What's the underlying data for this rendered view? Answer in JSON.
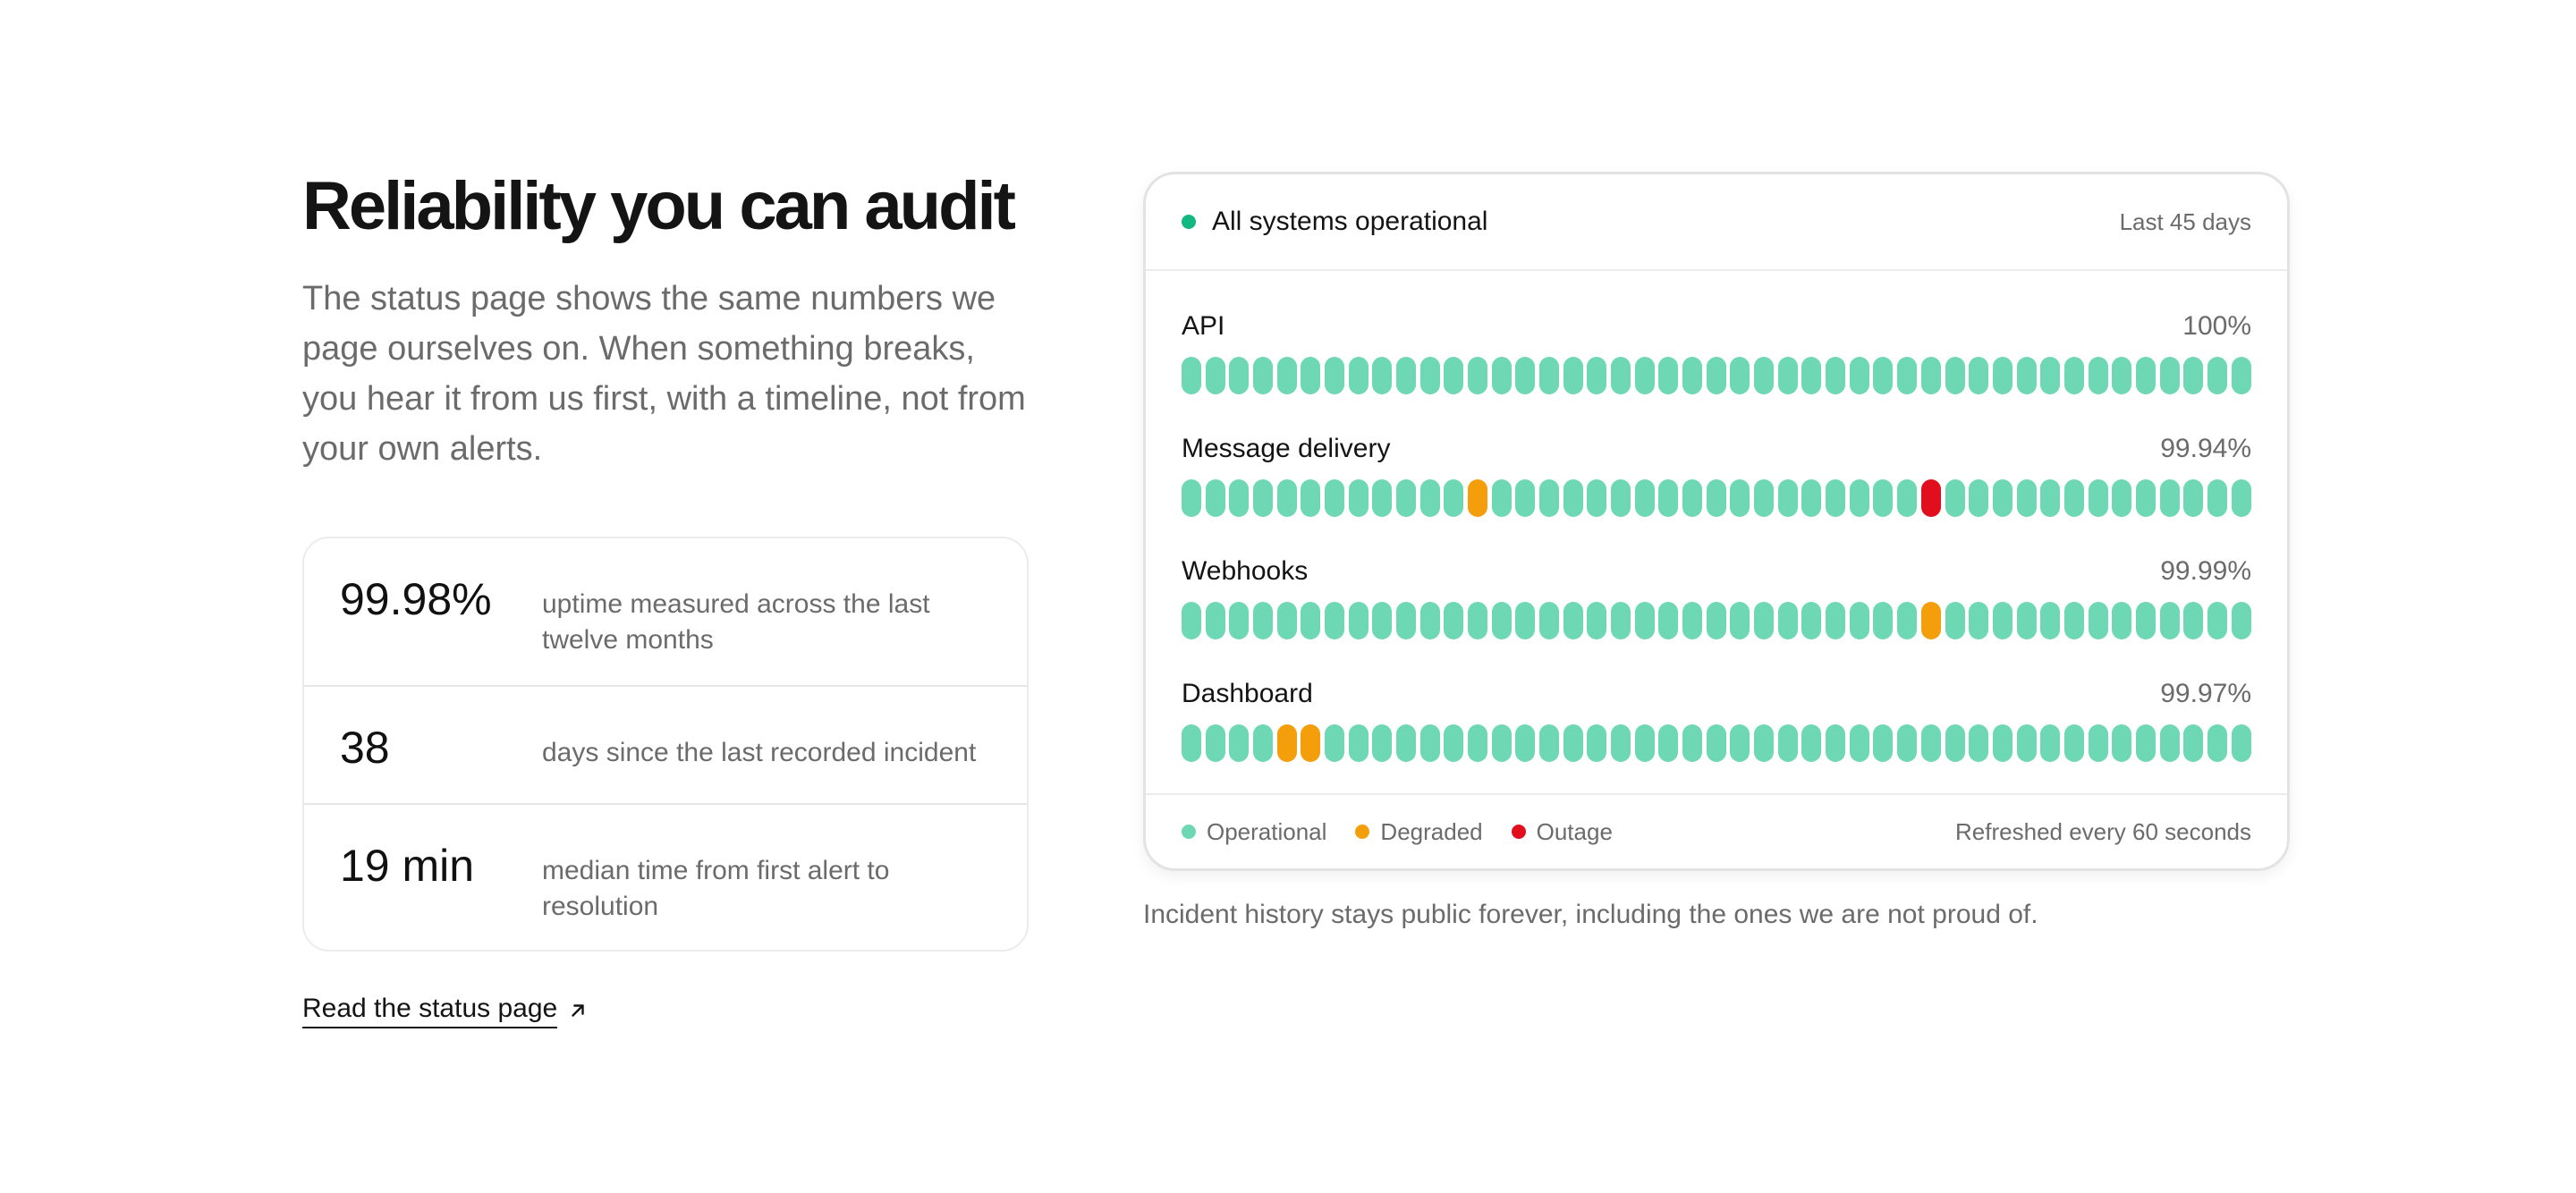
{
  "headline": "Reliability you can audit",
  "intro": "The status page shows the same numbers we page ourselves on. When something breaks, you hear it from us first, with a timeline, not from your own alerts.",
  "stats": [
    {
      "value": "99.98%",
      "desc": "uptime measured across the last twelve months"
    },
    {
      "value": "38",
      "desc": "days since the last recorded incident"
    },
    {
      "value": "19 min",
      "desc": "median time from first alert to resolution"
    }
  ],
  "link": {
    "label": "Read the status page",
    "icon": "arrow-up-right-icon"
  },
  "status_card": {
    "title": "All systems operational",
    "range": "Last 45 days",
    "services": [
      {
        "name": "API",
        "uptime": "100%",
        "degraded_days": [],
        "outage_days": []
      },
      {
        "name": "Message delivery",
        "uptime": "99.94%",
        "degraded_days": [
          12
        ],
        "outage_days": [
          31
        ]
      },
      {
        "name": "Webhooks",
        "uptime": "99.99%",
        "degraded_days": [
          31
        ],
        "outage_days": []
      },
      {
        "name": "Dashboard",
        "uptime": "99.97%",
        "degraded_days": [
          4,
          5
        ],
        "outage_days": []
      }
    ],
    "day_count": 45,
    "legend": [
      {
        "label": "Operational",
        "color": "#6ed8b5"
      },
      {
        "label": "Degraded",
        "color": "#f59e0b"
      },
      {
        "label": "Outage",
        "color": "#e10f1e"
      }
    ],
    "refresh": "Refreshed every 60 seconds"
  },
  "caption": "Incident history stays public forever, including the ones we are not proud of.",
  "colors": {
    "operational": "#6ed8b5",
    "degraded": "#f59e0b",
    "outage": "#e10f1e",
    "status_dot": "#10b981"
  }
}
